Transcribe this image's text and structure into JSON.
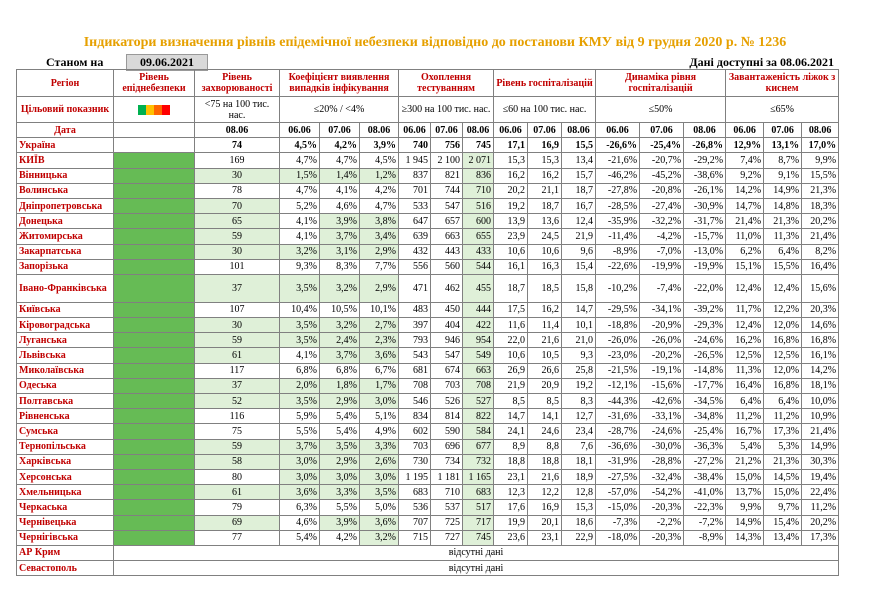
{
  "title": "Індикатори визначення рівнів епідемічної небезпеки відповідно до постанови КМУ від 9 грудня 2020 р. № 1236",
  "as_of_label": "Станом на",
  "as_of_date": "09.06.2021",
  "data_as_of": "Дані доступні за 08.06.2021",
  "headers": {
    "region": "Регіон",
    "level": "Рівень епіднебезпеки",
    "incidence": "Рівень захворюваності",
    "detection": "Коефіцієнт виявлення випадків інфікування",
    "testing": "Охоплення тестуванням",
    "hospital": "Рівень госпіталізацій",
    "dynamics": "Динаміка рівня госпіталізацій",
    "oxygen": "Завантаженість ліжок з киснем",
    "target": "Цільовий показник",
    "t_incidence": "<75 на 100 тис. нас.",
    "t_detection": "≤20% / <4%",
    "t_testing": "≥300 на 100 тис. нас.",
    "t_hospital": "≤60 на 100 тис. нас.",
    "t_dynamics": "≤50%",
    "t_oxygen": "≤65%",
    "date_label": "Дата",
    "d_incidence": "08.06",
    "d1": "06.06",
    "d2": "07.06",
    "d3": "08.06"
  },
  "level_colors": [
    "#00b050",
    "#ffc000",
    "#ff6600",
    "#ff0000"
  ],
  "missing_text": "відсутні дані",
  "rows": [
    {
      "name": "Україна",
      "inc": "74",
      "det": [
        "4,5%",
        "4,2%",
        "3,9%"
      ],
      "test": [
        "740",
        "756",
        "745"
      ],
      "hosp": [
        "17,1",
        "16,9",
        "15,5"
      ],
      "dyn": [
        "-26,6%",
        "-25,4%",
        "-26,8%"
      ],
      "oxy": [
        "12,9%",
        "13,1%",
        "17,0%"
      ]
    },
    {
      "name": "КИЇВ",
      "inc": "169",
      "det": [
        "4,7%",
        "4,7%",
        "4,5%"
      ],
      "test": [
        "1 945",
        "2 100",
        "2 071"
      ],
      "hosp": [
        "15,3",
        "15,3",
        "13,4"
      ],
      "dyn": [
        "-21,6%",
        "-20,7%",
        "-29,2%"
      ],
      "oxy": [
        "7,4%",
        "8,7%",
        "9,9%"
      ]
    },
    {
      "name": "Вінницька",
      "inc": "30",
      "det": [
        "1,5%",
        "1,4%",
        "1,2%"
      ],
      "test": [
        "837",
        "821",
        "836"
      ],
      "hosp": [
        "16,2",
        "16,2",
        "15,7"
      ],
      "dyn": [
        "-46,2%",
        "-45,2%",
        "-38,6%"
      ],
      "oxy": [
        "9,2%",
        "9,1%",
        "15,5%"
      ]
    },
    {
      "name": "Волинська",
      "inc": "78",
      "det": [
        "4,7%",
        "4,1%",
        "4,2%"
      ],
      "test": [
        "701",
        "744",
        "710"
      ],
      "hosp": [
        "20,2",
        "21,1",
        "18,7"
      ],
      "dyn": [
        "-27,8%",
        "-20,8%",
        "-26,1%"
      ],
      "oxy": [
        "14,2%",
        "14,9%",
        "21,3%"
      ]
    },
    {
      "name": "Дніпропетровська",
      "inc": "70",
      "det": [
        "5,2%",
        "4,6%",
        "4,7%"
      ],
      "test": [
        "533",
        "547",
        "516"
      ],
      "hosp": [
        "19,2",
        "18,7",
        "16,7"
      ],
      "dyn": [
        "-28,5%",
        "-27,4%",
        "-30,9%"
      ],
      "oxy": [
        "14,7%",
        "14,8%",
        "18,3%"
      ]
    },
    {
      "name": "Донецька",
      "inc": "65",
      "det": [
        "4,1%",
        "3,9%",
        "3,8%"
      ],
      "test": [
        "647",
        "657",
        "600"
      ],
      "hosp": [
        "13,9",
        "13,6",
        "12,4"
      ],
      "dyn": [
        "-35,9%",
        "-32,2%",
        "-31,7%"
      ],
      "oxy": [
        "21,4%",
        "21,3%",
        "20,2%"
      ]
    },
    {
      "name": "Житомирська",
      "inc": "59",
      "det": [
        "4,1%",
        "3,7%",
        "3,4%"
      ],
      "test": [
        "639",
        "663",
        "655"
      ],
      "hosp": [
        "23,9",
        "24,5",
        "21,9"
      ],
      "dyn": [
        "-11,4%",
        "-4,2%",
        "-15,7%"
      ],
      "oxy": [
        "11,0%",
        "11,3%",
        "21,4%"
      ]
    },
    {
      "name": "Закарпатська",
      "inc": "30",
      "det": [
        "3,2%",
        "3,1%",
        "2,9%"
      ],
      "test": [
        "432",
        "443",
        "433"
      ],
      "hosp": [
        "10,6",
        "10,6",
        "9,6"
      ],
      "dyn": [
        "-8,9%",
        "-7,0%",
        "-13,0%"
      ],
      "oxy": [
        "6,2%",
        "6,4%",
        "8,2%"
      ]
    },
    {
      "name": "Запорізька",
      "inc": "101",
      "det": [
        "9,3%",
        "8,3%",
        "7,7%"
      ],
      "test": [
        "556",
        "560",
        "544"
      ],
      "hosp": [
        "16,1",
        "16,3",
        "15,4"
      ],
      "dyn": [
        "-22,6%",
        "-19,9%",
        "-19,9%"
      ],
      "oxy": [
        "15,1%",
        "15,5%",
        "16,4%"
      ]
    },
    {
      "name": "Івано-Франківська",
      "inc": "37",
      "det": [
        "3,5%",
        "3,2%",
        "2,9%"
      ],
      "test": [
        "471",
        "462",
        "455"
      ],
      "hosp": [
        "18,7",
        "18,5",
        "15,8"
      ],
      "dyn": [
        "-10,2%",
        "-7,4%",
        "-22,0%"
      ],
      "oxy": [
        "12,4%",
        "12,4%",
        "15,6%"
      ]
    },
    {
      "name": "Київська",
      "inc": "107",
      "det": [
        "10,4%",
        "10,5%",
        "10,1%"
      ],
      "test": [
        "483",
        "450",
        "444"
      ],
      "hosp": [
        "17,5",
        "16,2",
        "14,7"
      ],
      "dyn": [
        "-29,5%",
        "-34,1%",
        "-39,2%"
      ],
      "oxy": [
        "11,7%",
        "12,2%",
        "20,3%"
      ]
    },
    {
      "name": "Кіровоградська",
      "inc": "30",
      "det": [
        "3,5%",
        "3,2%",
        "2,7%"
      ],
      "test": [
        "397",
        "404",
        "422"
      ],
      "hosp": [
        "11,6",
        "11,4",
        "10,1"
      ],
      "dyn": [
        "-18,8%",
        "-20,9%",
        "-29,3%"
      ],
      "oxy": [
        "12,4%",
        "12,0%",
        "14,6%"
      ]
    },
    {
      "name": "Луганська",
      "inc": "59",
      "det": [
        "3,5%",
        "2,4%",
        "2,3%"
      ],
      "test": [
        "793",
        "946",
        "954"
      ],
      "hosp": [
        "22,0",
        "21,6",
        "21,0"
      ],
      "dyn": [
        "-26,0%",
        "-26,0%",
        "-24,6%"
      ],
      "oxy": [
        "16,2%",
        "16,8%",
        "16,8%"
      ]
    },
    {
      "name": "Львівська",
      "inc": "61",
      "det": [
        "4,1%",
        "3,7%",
        "3,6%"
      ],
      "test": [
        "543",
        "547",
        "549"
      ],
      "hosp": [
        "10,6",
        "10,5",
        "9,3"
      ],
      "dyn": [
        "-23,0%",
        "-20,2%",
        "-26,5%"
      ],
      "oxy": [
        "12,5%",
        "12,5%",
        "16,1%"
      ]
    },
    {
      "name": "Миколаївська",
      "inc": "117",
      "det": [
        "6,8%",
        "6,8%",
        "6,7%"
      ],
      "test": [
        "681",
        "674",
        "663"
      ],
      "hosp": [
        "26,9",
        "26,6",
        "25,8"
      ],
      "dyn": [
        "-21,5%",
        "-19,1%",
        "-14,8%"
      ],
      "oxy": [
        "11,3%",
        "12,0%",
        "14,2%"
      ]
    },
    {
      "name": "Одеська",
      "inc": "37",
      "det": [
        "2,0%",
        "1,8%",
        "1,7%"
      ],
      "test": [
        "708",
        "703",
        "708"
      ],
      "hosp": [
        "21,9",
        "20,9",
        "19,2"
      ],
      "dyn": [
        "-12,1%",
        "-15,6%",
        "-17,7%"
      ],
      "oxy": [
        "16,4%",
        "16,8%",
        "18,1%"
      ]
    },
    {
      "name": "Полтавська",
      "inc": "52",
      "det": [
        "3,5%",
        "2,9%",
        "3,0%"
      ],
      "test": [
        "546",
        "526",
        "527"
      ],
      "hosp": [
        "8,5",
        "8,5",
        "8,3"
      ],
      "dyn": [
        "-44,3%",
        "-42,6%",
        "-34,5%"
      ],
      "oxy": [
        "6,4%",
        "6,4%",
        "10,0%"
      ]
    },
    {
      "name": "Рівненська",
      "inc": "116",
      "det": [
        "5,9%",
        "5,4%",
        "5,1%"
      ],
      "test": [
        "834",
        "814",
        "822"
      ],
      "hosp": [
        "14,7",
        "14,1",
        "12,7"
      ],
      "dyn": [
        "-31,6%",
        "-33,1%",
        "-34,8%"
      ],
      "oxy": [
        "11,2%",
        "11,2%",
        "10,9%"
      ]
    },
    {
      "name": "Сумська",
      "inc": "75",
      "det": [
        "5,5%",
        "5,4%",
        "4,9%"
      ],
      "test": [
        "602",
        "590",
        "584"
      ],
      "hosp": [
        "24,1",
        "24,6",
        "23,4"
      ],
      "dyn": [
        "-28,7%",
        "-24,6%",
        "-25,4%"
      ],
      "oxy": [
        "16,7%",
        "17,3%",
        "21,4%"
      ]
    },
    {
      "name": "Тернопільська",
      "inc": "59",
      "det": [
        "3,7%",
        "3,5%",
        "3,3%"
      ],
      "test": [
        "703",
        "696",
        "677"
      ],
      "hosp": [
        "8,9",
        "8,8",
        "7,6"
      ],
      "dyn": [
        "-36,6%",
        "-30,0%",
        "-36,3%"
      ],
      "oxy": [
        "5,4%",
        "5,3%",
        "14,9%"
      ]
    },
    {
      "name": "Харківська",
      "inc": "58",
      "det": [
        "3,0%",
        "2,9%",
        "2,6%"
      ],
      "test": [
        "730",
        "734",
        "732"
      ],
      "hosp": [
        "18,8",
        "18,8",
        "18,1"
      ],
      "dyn": [
        "-31,9%",
        "-28,8%",
        "-27,2%"
      ],
      "oxy": [
        "21,2%",
        "21,3%",
        "30,3%"
      ]
    },
    {
      "name": "Херсонська",
      "inc": "80",
      "det": [
        "3,0%",
        "3,0%",
        "3,0%"
      ],
      "test": [
        "1 195",
        "1 181",
        "1 165"
      ],
      "hosp": [
        "23,1",
        "21,6",
        "18,9"
      ],
      "dyn": [
        "-27,5%",
        "-32,4%",
        "-38,4%"
      ],
      "oxy": [
        "15,0%",
        "14,5%",
        "19,4%"
      ]
    },
    {
      "name": "Хмельницька",
      "inc": "61",
      "det": [
        "3,6%",
        "3,3%",
        "3,5%"
      ],
      "test": [
        "683",
        "710",
        "683"
      ],
      "hosp": [
        "12,3",
        "12,2",
        "12,8"
      ],
      "dyn": [
        "-57,0%",
        "-54,2%",
        "-41,0%"
      ],
      "oxy": [
        "13,7%",
        "15,0%",
        "22,4%"
      ]
    },
    {
      "name": "Черкаська",
      "inc": "79",
      "det": [
        "6,3%",
        "5,5%",
        "5,0%"
      ],
      "test": [
        "536",
        "537",
        "517"
      ],
      "hosp": [
        "17,6",
        "16,9",
        "15,3"
      ],
      "dyn": [
        "-15,0%",
        "-20,3%",
        "-22,3%"
      ],
      "oxy": [
        "9,9%",
        "9,7%",
        "11,2%"
      ]
    },
    {
      "name": "Чернівецька",
      "inc": "69",
      "det": [
        "4,6%",
        "3,9%",
        "3,6%"
      ],
      "test": [
        "707",
        "725",
        "717"
      ],
      "hosp": [
        "19,9",
        "20,1",
        "18,6"
      ],
      "dyn": [
        "-7,3%",
        "-2,2%",
        "-7,2%"
      ],
      "oxy": [
        "14,9%",
        "15,4%",
        "20,2%"
      ]
    },
    {
      "name": "Чернігівська",
      "inc": "77",
      "det": [
        "5,4%",
        "4,2%",
        "3,2%"
      ],
      "test": [
        "715",
        "727",
        "745"
      ],
      "hosp": [
        "23,6",
        "23,1",
        "22,9"
      ],
      "dyn": [
        "-18,0%",
        "-20,3%",
        "-8,9%"
      ],
      "oxy": [
        "14,3%",
        "13,4%",
        "17,3%"
      ]
    }
  ],
  "missing_rows": [
    "АР Крим",
    "Севастополь"
  ]
}
